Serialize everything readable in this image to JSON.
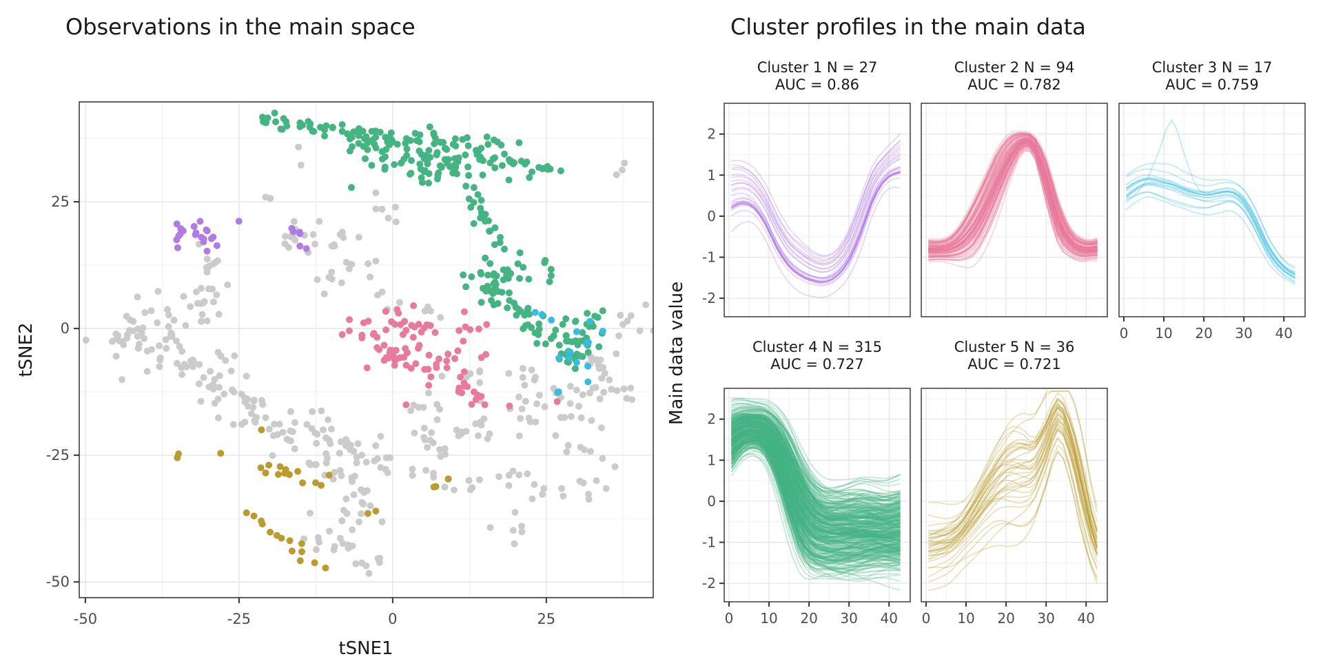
{
  "chart_data": {
    "theme": {
      "page_background": "#ffffff",
      "grid_major": "#e3e3e3",
      "grid_minor": "#f0f0f0",
      "panel_border": "#3a3a3a",
      "tick_color": "#333333",
      "tick_text_color": "#4d4d4d",
      "title_color": "#1a1a1a"
    },
    "scatter": {
      "type": "scatter",
      "title": "Observations in the main space",
      "xlabel": "tSNE1",
      "ylabel": "tSNE2",
      "x_ticks": [
        -50,
        -25,
        0,
        25
      ],
      "y_ticks": [
        25,
        0,
        -25,
        -50
      ],
      "x_minor": [
        -37.5,
        -12.5,
        12.5,
        37.5
      ],
      "y_minor": [
        37.5,
        12.5,
        -12.5,
        -37.5
      ],
      "x_range": [
        -51,
        42.4
      ],
      "y_range": [
        -53.1,
        44.7
      ],
      "point_radius": 5,
      "colors": {
        "gray": "#cbcbcb",
        "purple": "#b07ce0",
        "pink": "#e87b9c",
        "blue": "#38bde0",
        "green": "#45b483",
        "gold": "#bb9b2f"
      },
      "cluster_color_map": {
        "Cluster 1": "purple",
        "Cluster 2": "pink",
        "Cluster 3": "blue",
        "Cluster 4": "green",
        "Cluster 5": "gold",
        "unclustered": "gray"
      },
      "blobs": [
        [
          "gray",
          "cloud",
          -40,
          3.5,
          3.5,
          2.2,
          14
        ],
        [
          "gray",
          "cloud",
          -31,
          6.5,
          1.8,
          3.5,
          16
        ],
        [
          "gray",
          "cloud",
          -29.5,
          12.5,
          1.5,
          1.8,
          8
        ],
        [
          "gray",
          "cloud",
          -15.5,
          17.5,
          2.2,
          2.2,
          14
        ],
        [
          "gray",
          "cloud",
          -8.5,
          18,
          1.5,
          2,
          8
        ],
        [
          "gray",
          "cloud",
          -10,
          10,
          1.8,
          1.8,
          7
        ],
        [
          "gray",
          "chain",
          -15.2,
          35.5,
          -14.8,
          33,
          0.6,
          2
        ],
        [
          "gray",
          "cloud",
          0,
          22.5,
          1.8,
          2,
          6
        ],
        [
          "gray",
          "cloud",
          -4.5,
          13,
          1.5,
          1.5,
          4
        ],
        [
          "gray",
          "cloud",
          -1,
          6.5,
          2,
          1.8,
          5
        ],
        [
          "gray",
          "cloud",
          -43,
          -1.5,
          3,
          2,
          20
        ],
        [
          "gray",
          "cloud",
          -36,
          -5,
          3.5,
          2.5,
          26
        ],
        [
          "gray",
          "cloud",
          -29,
          -9,
          3,
          2.5,
          20
        ],
        [
          "gray",
          "chain",
          -27,
          -12,
          -22,
          -16,
          1.2,
          8
        ],
        [
          "gray",
          "cloud",
          -24,
          -17,
          2.5,
          2,
          12
        ],
        [
          "gray",
          "chain",
          -21,
          -18,
          -16,
          -24,
          1.2,
          9
        ],
        [
          "gray",
          "cloud",
          -16,
          -21,
          2.5,
          2,
          12
        ],
        [
          "gray",
          "cloud",
          -10,
          -22,
          3.5,
          2.5,
          24
        ],
        [
          "gray",
          "cloud",
          -3.5,
          -26.5,
          2.8,
          2.2,
          14
        ],
        [
          "gray",
          "chain",
          -13,
          -27,
          -5,
          -31,
          1.5,
          10
        ],
        [
          "gray",
          "cloud",
          -7,
          -35,
          2.8,
          2.5,
          16
        ],
        [
          "gray",
          "chain",
          -9.5,
          -40,
          -6,
          -45,
          1.2,
          7
        ],
        [
          "gray",
          "cloud",
          -12,
          -43.5,
          1.5,
          1.5,
          6
        ],
        [
          "gray",
          "cloud",
          -3,
          -46,
          1.5,
          1,
          6
        ],
        [
          "gray",
          "cloud",
          5,
          -14,
          1.5,
          2,
          8
        ],
        [
          "gray",
          "cloud",
          7,
          -22,
          3.2,
          2.5,
          16
        ],
        [
          "gray",
          "chain",
          3,
          -28,
          14,
          -31.5,
          1.5,
          12
        ],
        [
          "gray",
          "cloud",
          14,
          -20,
          2.5,
          2.5,
          10
        ],
        [
          "gray",
          "cloud",
          20,
          -9,
          1.5,
          2,
          6
        ],
        [
          "gray",
          "cloud",
          13.5,
          -9,
          1.5,
          1.5,
          5
        ],
        [
          "gray",
          "cloud",
          25,
          -15,
          3.5,
          3,
          26
        ],
        [
          "gray",
          "chain",
          17,
          -28,
          25,
          -33,
          1.5,
          10
        ],
        [
          "gray",
          "cloud",
          35,
          -12,
          2.2,
          3.5,
          18
        ],
        [
          "gray",
          "cloud",
          39,
          2,
          1.5,
          3,
          8
        ],
        [
          "gray",
          "cloud",
          33,
          -6,
          1.8,
          1.8,
          8
        ],
        [
          "gray",
          "chain",
          28,
          -22,
          35,
          -27,
          1.2,
          8
        ],
        [
          "gray",
          "cloud",
          31.5,
          -31.5,
          2,
          1.5,
          8
        ],
        [
          "gray",
          "cloud",
          19,
          -39,
          2,
          1.8,
          6
        ],
        [
          "gray",
          "chain",
          36,
          30.5,
          38,
          32.5,
          0.8,
          3
        ],
        [
          "gray",
          "cloud",
          8,
          3,
          1.5,
          1.2,
          4
        ],
        [
          "gray",
          "cloud",
          -20.5,
          25,
          0.8,
          0.8,
          2
        ],
        [
          "gold",
          "cloud",
          -35,
          -24.3,
          0.9,
          0.7,
          2
        ],
        [
          "gold",
          "cloud",
          -19,
          -27.5,
          2.8,
          1.4,
          9
        ],
        [
          "gold",
          "cloud",
          -13,
          -30.5,
          1.8,
          1.2,
          4
        ],
        [
          "gold",
          "chain",
          -23,
          -36.5,
          -12,
          -47.5,
          1.3,
          14
        ],
        [
          "gold",
          "cloud",
          -4.5,
          -36.5,
          0.8,
          0.6,
          2
        ],
        [
          "gold",
          "cloud",
          8,
          -30,
          1.2,
          0.8,
          3
        ],
        [
          "gold",
          "cloud",
          -21,
          -20.5,
          0.4,
          0.4,
          1
        ],
        [
          "gold",
          "cloud",
          -28,
          -25.3,
          0.4,
          0.4,
          1
        ],
        [
          "green",
          "chain",
          -21.5,
          41.5,
          2,
          37,
          1.1,
          46
        ],
        [
          "green",
          "cloud",
          8,
          33.8,
          6.5,
          2.6,
          110
        ],
        [
          "green",
          "chain",
          19,
          33,
          26.5,
          31.5,
          1.0,
          16
        ],
        [
          "green",
          "cloud",
          -3,
          36,
          2,
          1.5,
          10
        ],
        [
          "green",
          "chain",
          13,
          26.5,
          17,
          16.5,
          1.4,
          20
        ],
        [
          "green",
          "cloud",
          17,
          9.5,
          2.4,
          3.2,
          40
        ],
        [
          "green",
          "chain",
          19.5,
          5,
          24,
          -1,
          1.2,
          20
        ],
        [
          "green",
          "cloud",
          28.5,
          -3,
          2.2,
          3,
          40
        ],
        [
          "green",
          "cloud",
          24.5,
          12,
          1.2,
          1.2,
          5
        ],
        [
          "green",
          "cloud",
          33,
          2.5,
          1,
          1.5,
          8
        ],
        [
          "purple",
          "cloud",
          -31.5,
          18,
          2.4,
          1.6,
          19
        ],
        [
          "purple",
          "chain",
          -17,
          20,
          -15,
          18.5,
          0.8,
          4
        ],
        [
          "purple",
          "cloud",
          -31,
          14.8,
          0.6,
          0.5,
          1
        ],
        [
          "purple",
          "cloud",
          -25.5,
          20.5,
          0.5,
          0.5,
          1
        ],
        [
          "purple",
          "cloud",
          -14.5,
          16,
          0.6,
          0.5,
          2
        ],
        [
          "pink",
          "cloud",
          1,
          0.8,
          4,
          2.2,
          30
        ],
        [
          "pink",
          "cloud",
          5.5,
          -5.5,
          4.2,
          3,
          30
        ],
        [
          "pink",
          "chain",
          9,
          -9,
          15,
          -16,
          1.5,
          14
        ],
        [
          "pink",
          "cloud",
          -1,
          -5,
          1.5,
          2,
          10
        ],
        [
          "pink",
          "cloud",
          13.5,
          0.5,
          1.8,
          1.5,
          6
        ],
        [
          "pink",
          "cloud",
          15,
          -6,
          0.5,
          0.5,
          1
        ],
        [
          "pink",
          "cloud",
          19.5,
          -15,
          0.5,
          0.5,
          1
        ],
        [
          "pink",
          "cloud",
          2,
          -14.5,
          0.5,
          0.5,
          1
        ],
        [
          "pink",
          "cloud",
          27,
          -15,
          0.5,
          0.5,
          1
        ],
        [
          "blue",
          "cloud",
          30.5,
          -4.5,
          1.5,
          2.8,
          11
        ],
        [
          "blue",
          "chain",
          23.5,
          3,
          25.5,
          2,
          0.8,
          3
        ],
        [
          "blue",
          "cloud",
          27,
          -12.5,
          1,
          0.8,
          2
        ],
        [
          "blue",
          "cloud",
          34.5,
          -0.5,
          0.4,
          0.4,
          1
        ]
      ]
    },
    "profiles": {
      "type": "line",
      "title": "Cluster profiles in the main data",
      "ylabel": "Main data value",
      "x_ticks": [
        0,
        10,
        20,
        30,
        40
      ],
      "y_ticks": [
        2,
        1,
        0,
        -1,
        -2
      ],
      "x_minor": [
        5,
        15,
        25,
        35,
        45
      ],
      "y_minor": [
        2.5,
        1.5,
        0.5,
        -0.5,
        -1.5
      ],
      "x_range": [
        -1.2,
        45.3
      ],
      "y_range": [
        -2.45,
        2.75
      ],
      "line_opacity": 0.3,
      "xs": [
        0,
        3,
        6,
        9,
        12,
        15,
        18,
        21,
        24,
        27,
        30,
        33,
        36,
        39,
        42,
        44
      ],
      "clusters": [
        {
          "id": 1,
          "n": 27,
          "auc": 0.86,
          "title_line1": "Cluster 1 N = 27",
          "title_line2": "AUC = 0.86",
          "color": "#b07ce0",
          "wiggle": 0.25,
          "mean": [
            0.45,
            0.55,
            0.45,
            0.05,
            -0.55,
            -1.0,
            -1.25,
            -1.4,
            -1.45,
            -1.3,
            -0.9,
            -0.2,
            0.6,
            1.05,
            1.25,
            1.3
          ],
          "spread": [
            0.4,
            0.35,
            0.32,
            0.32,
            0.32,
            0.3,
            0.28,
            0.24,
            0.22,
            0.22,
            0.26,
            0.3,
            0.28,
            0.24,
            0.28,
            0.34
          ]
        },
        {
          "id": 2,
          "n": 94,
          "auc": 0.782,
          "title_line1": "Cluster 2 N = 94",
          "title_line2": "AUC = 0.782",
          "color": "#e87b9c",
          "wiggle": 0.28,
          "mean": [
            -0.82,
            -0.82,
            -0.78,
            -0.6,
            -0.25,
            0.3,
            0.95,
            1.5,
            1.82,
            1.72,
            0.9,
            -0.1,
            -0.62,
            -0.8,
            -0.8,
            -0.76
          ],
          "spread": [
            0.14,
            0.13,
            0.16,
            0.26,
            0.38,
            0.42,
            0.4,
            0.28,
            0.13,
            0.13,
            0.28,
            0.28,
            0.18,
            0.14,
            0.12,
            0.16
          ]
        },
        {
          "id": 3,
          "n": 17,
          "auc": 0.759,
          "title_line1": "Cluster 3 N = 17",
          "title_line2": "AUC = 0.759",
          "color": "#38bde0",
          "wiggle": 0.35,
          "mean": [
            0.55,
            0.75,
            0.85,
            0.8,
            0.72,
            0.6,
            0.5,
            0.45,
            0.5,
            0.52,
            0.3,
            -0.2,
            -0.8,
            -1.2,
            -1.42,
            -1.48
          ],
          "spread": [
            0.32,
            0.3,
            0.28,
            0.3,
            0.32,
            0.3,
            0.3,
            0.3,
            0.3,
            0.28,
            0.3,
            0.3,
            0.24,
            0.18,
            0.14,
            0.18
          ],
          "outlier": [
            0.35,
            0.5,
            0.9,
            1.6,
            2.3,
            1.5,
            0.7,
            0.5,
            0.55,
            0.55,
            0.35,
            -0.2,
            -0.75,
            -1.15,
            -1.35,
            -1.4
          ]
        },
        {
          "id": 4,
          "n": 315,
          "auc": 0.727,
          "title_line1": "Cluster 4 N = 315",
          "title_line2": "AUC = 0.727",
          "color": "#45b483",
          "wiggle": 0.5,
          "mean": [
            1.5,
            1.72,
            1.78,
            1.68,
            1.25,
            0.55,
            -0.15,
            -0.55,
            -0.7,
            -0.73,
            -0.72,
            -0.7,
            -0.7,
            -0.72,
            -0.7,
            -0.68
          ],
          "spread": [
            0.4,
            0.32,
            0.28,
            0.32,
            0.45,
            0.6,
            0.65,
            0.6,
            0.55,
            0.55,
            0.55,
            0.55,
            0.52,
            0.5,
            0.52,
            0.55
          ]
        },
        {
          "id": 5,
          "n": 36,
          "auc": 0.721,
          "title_line1": "Cluster 5 N = 36",
          "title_line2": "AUC = 0.721",
          "color": "#bb9b2f",
          "wiggle": 0.75,
          "mean": [
            -1.05,
            -1.02,
            -0.95,
            -0.72,
            -0.35,
            0.1,
            0.5,
            0.75,
            0.82,
            0.9,
            1.5,
            2.15,
            1.55,
            0.35,
            -0.85,
            -1.2
          ],
          "spread": [
            0.42,
            0.4,
            0.38,
            0.36,
            0.42,
            0.52,
            0.62,
            0.72,
            0.72,
            0.6,
            0.5,
            0.42,
            0.5,
            0.6,
            0.5,
            0.45
          ]
        }
      ]
    }
  }
}
